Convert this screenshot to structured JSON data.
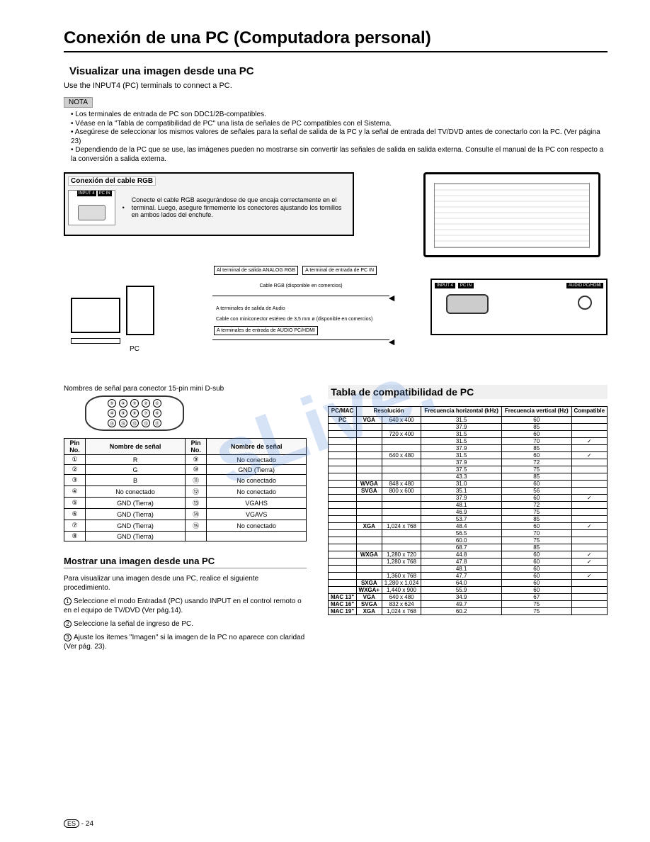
{
  "page_title": "Conexión de una PC (Computadora personal)",
  "section_visualize": "Visualizar una imagen desde una PC",
  "intro_line": "Use the INPUT4 (PC) terminals to connect a PC.",
  "note_tag": "NOTA",
  "notes": [
    "Los terminales de entrada de PC son DDC1/2B-compatibles.",
    "Véase en la \"Tabla de compatibilidad de PC\" una lista de señales de PC compatibles con el Sistema.",
    "Asegúrese de seleccionar los mismos valores de señales para la señal de salida de la PC y la señal de entrada del TV/DVD antes de conectarlo con la PC. (Ver página 23)",
    "Dependiendo de la PC que se use, las imágenes pueden no mostrarse sin convertir las señales de salida en salida externa. Consulte el manual de la PC con respecto a la conversión a salida externa."
  ],
  "rgb_box_title": "Conexión del cable RGB",
  "rgb_box_text": "Conecte el cable RGB asegurándose de que encaja correctamente en el terminal. Luego, asegure firmemente los conectores ajustando los tornillos en ambos lados del enchufe.",
  "port_input4": "INPUT 4",
  "port_pcin": "PC IN",
  "port_audio": "AUDIO PC/HDMI",
  "label_analog_out": "Al terminal de salida ANALOG RGB",
  "label_pcin": "A terminal de entrada de PC IN",
  "label_cable_rgb": "Cable RGB (disponible en comercios)",
  "label_audio_out": "A terminales de salida de Audio",
  "label_miniconn": "Cable con miniconector estéreo de 3,5 mm ø (disponible en comercios)",
  "label_audio_in": "A terminales de entrada de AUDIO PC/HDMI",
  "pc_label": "PC",
  "pin_caption": "Nombres de señal para conector 15-pin mini D-sub",
  "pin_header": {
    "c1": "Pin No.",
    "c2": "Nombre de señal",
    "c3": "Pin No.",
    "c4": "Nombre de señal"
  },
  "pin_rows": [
    [
      "①",
      "R",
      "⑨",
      "No conectado"
    ],
    [
      "②",
      "G",
      "⑩",
      "GND (Tierra)"
    ],
    [
      "③",
      "B",
      "⑪",
      "No conectado"
    ],
    [
      "④",
      "No conectado",
      "⑫",
      "No conectado"
    ],
    [
      "⑤",
      "GND (Tierra)",
      "⑬",
      "VGAHS"
    ],
    [
      "⑥",
      "GND (Tierra)",
      "⑭",
      "VGAVS"
    ],
    [
      "⑦",
      "GND (Tierra)",
      "⑮",
      "No conectado"
    ],
    [
      "⑧",
      "GND (Tierra)",
      "",
      ""
    ]
  ],
  "section_show": "Mostrar una imagen desde una PC",
  "proc_intro": "Para visualizar una imagen desde una PC, realice el siguiente procedimiento.",
  "proc1": "Seleccione el modo Entrada4 (PC) usando INPUT en el control remoto o en el equipo de TV/DVD (Ver pág.14).",
  "proc2": "Seleccione la señal de ingreso de PC.",
  "proc3": "Ajuste los ítemes \"Imagen\" si la imagen de la PC no aparece con claridad (Ver pág. 23).",
  "comp_title": "Tabla de compatibilidad de PC",
  "comp_header": {
    "c1": "PC/MAC",
    "c2": "Resolución",
    "c3": "Frecuencia horizontal (kHz)",
    "c4": "Frecuencia vertical (Hz)",
    "c5": "Compatible"
  },
  "comp_rows": [
    {
      "g": "PC",
      "m": "VGA",
      "r": "640 x 400",
      "h": "31.5",
      "v": "60",
      "c": ""
    },
    {
      "g": "",
      "m": "",
      "r": "",
      "h": "37.9",
      "v": "85",
      "c": ""
    },
    {
      "g": "",
      "m": "",
      "r": "720 x 400",
      "h": "31.5",
      "v": "60",
      "c": ""
    },
    {
      "g": "",
      "m": "",
      "r": "",
      "h": "31.5",
      "v": "70",
      "c": "✓"
    },
    {
      "g": "",
      "m": "",
      "r": "",
      "h": "37.9",
      "v": "85",
      "c": ""
    },
    {
      "g": "",
      "m": "",
      "r": "640 x 480",
      "h": "31.5",
      "v": "60",
      "c": "✓"
    },
    {
      "g": "",
      "m": "",
      "r": "",
      "h": "37.9",
      "v": "72",
      "c": ""
    },
    {
      "g": "",
      "m": "",
      "r": "",
      "h": "37.5",
      "v": "75",
      "c": ""
    },
    {
      "g": "",
      "m": "",
      "r": "",
      "h": "43.3",
      "v": "85",
      "c": ""
    },
    {
      "g": "",
      "m": "WVGA",
      "r": "848 x 480",
      "h": "31.0",
      "v": "60",
      "c": ""
    },
    {
      "g": "",
      "m": "SVGA",
      "r": "800 x 600",
      "h": "35.1",
      "v": "56",
      "c": ""
    },
    {
      "g": "",
      "m": "",
      "r": "",
      "h": "37.9",
      "v": "60",
      "c": "✓"
    },
    {
      "g": "",
      "m": "",
      "r": "",
      "h": "48.1",
      "v": "72",
      "c": ""
    },
    {
      "g": "",
      "m": "",
      "r": "",
      "h": "46.9",
      "v": "75",
      "c": ""
    },
    {
      "g": "",
      "m": "",
      "r": "",
      "h": "53.7",
      "v": "85",
      "c": ""
    },
    {
      "g": "",
      "m": "XGA",
      "r": "1,024 x 768",
      "h": "48.4",
      "v": "60",
      "c": "✓"
    },
    {
      "g": "",
      "m": "",
      "r": "",
      "h": "56.5",
      "v": "70",
      "c": ""
    },
    {
      "g": "",
      "m": "",
      "r": "",
      "h": "60.0",
      "v": "75",
      "c": ""
    },
    {
      "g": "",
      "m": "",
      "r": "",
      "h": "68.7",
      "v": "85",
      "c": ""
    },
    {
      "g": "",
      "m": "WXGA",
      "r": "1,280 x 720",
      "h": "44.8",
      "v": "60",
      "c": "✓"
    },
    {
      "g": "",
      "m": "",
      "r": "1,280 x 768",
      "h": "47.8",
      "v": "60",
      "c": "✓"
    },
    {
      "g": "",
      "m": "",
      "r": "",
      "h": "48.1",
      "v": "60",
      "c": ""
    },
    {
      "g": "",
      "m": "",
      "r": "1,360 x 768",
      "h": "47.7",
      "v": "60",
      "c": "✓"
    },
    {
      "g": "",
      "m": "SXGA",
      "r": "1,280 x 1,024",
      "h": "64.0",
      "v": "60",
      "c": ""
    },
    {
      "g": "",
      "m": "WXGA+",
      "r": "1,440 x 900",
      "h": "55.9",
      "v": "60",
      "c": ""
    },
    {
      "g": "MAC 13\"",
      "m": "VGA",
      "r": "640 x 480",
      "h": "34.9",
      "v": "67",
      "c": ""
    },
    {
      "g": "MAC 16\"",
      "m": "SVGA",
      "r": "832 x 624",
      "h": "49.7",
      "v": "75",
      "c": ""
    },
    {
      "g": "MAC 19\"",
      "m": "XGA",
      "r": "1,024 x 768",
      "h": "60.2",
      "v": "75",
      "c": ""
    }
  ],
  "footer_es": "ES",
  "footer_page": "- 24"
}
